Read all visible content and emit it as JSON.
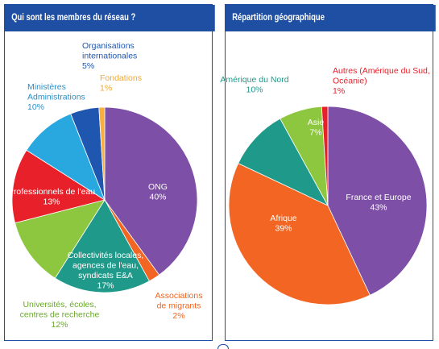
{
  "panels": {
    "left_title": "Qui sont les membres du réseau ?",
    "right_title": "Répartition géographique"
  },
  "chart_data": [
    {
      "type": "pie",
      "title": "Qui sont les membres du réseau ?",
      "slices": [
        {
          "label_lines": [
            "ONG"
          ],
          "value": 40,
          "value_label": "40%",
          "color": "#7d4fa6",
          "label_color": "#ffffff"
        },
        {
          "label_lines": [
            "Associations",
            "de migrants"
          ],
          "value": 2,
          "value_label": "2%",
          "color": "#f26522",
          "label_color": "#f26522"
        },
        {
          "label_lines": [
            "Collectivités locales,",
            "agences de l'eau,",
            "syndicats E&A"
          ],
          "value": 17,
          "value_label": "17%",
          "color": "#1f9a8a",
          "label_color": "#ffffff"
        },
        {
          "label_lines": [
            "Universités, écoles,",
            "centres de recherche"
          ],
          "value": 12,
          "value_label": "12%",
          "color": "#8dc63f",
          "label_color": "#6aa82d"
        },
        {
          "label_lines": [
            "Professionnels de l'eau"
          ],
          "value": 13,
          "value_label": "13%",
          "color": "#e8202a",
          "label_color": "#ffffff"
        },
        {
          "label_lines": [
            "Ministères",
            "Administrations"
          ],
          "value": 10,
          "value_label": "10%",
          "color": "#29a8e0",
          "label_color": "#2a8fc9"
        },
        {
          "label_lines": [
            "Organisations",
            "internationales"
          ],
          "value": 5,
          "value_label": "5%",
          "color": "#1f56b0",
          "label_color": "#1f56b0"
        },
        {
          "label_lines": [
            "Fondations"
          ],
          "value": 1,
          "value_label": "1%",
          "color": "#f7b040",
          "label_color": "#f0a830"
        }
      ]
    },
    {
      "type": "pie",
      "title": "Répartition géographique",
      "slices": [
        {
          "label_lines": [
            "France et Europe"
          ],
          "value": 43,
          "value_label": "43%",
          "color": "#7d4fa6",
          "label_color": "#ffffff"
        },
        {
          "label_lines": [
            "Afrique"
          ],
          "value": 39,
          "value_label": "39%",
          "color": "#f26522",
          "label_color": "#ffffff"
        },
        {
          "label_lines": [
            "Amérique du Nord"
          ],
          "value": 10,
          "value_label": "10%",
          "color": "#1f9a8a",
          "label_color": "#1f9a8a"
        },
        {
          "label_lines": [
            "Asie"
          ],
          "value": 7,
          "value_label": "7%",
          "color": "#8dc63f",
          "label_color": "#ffffff"
        },
        {
          "label_lines": [
            "Autres (Amérique du Sud,",
            "Océanie)"
          ],
          "value": 1,
          "value_label": "1%",
          "color": "#e8202a",
          "label_color": "#e8202a"
        }
      ]
    }
  ]
}
